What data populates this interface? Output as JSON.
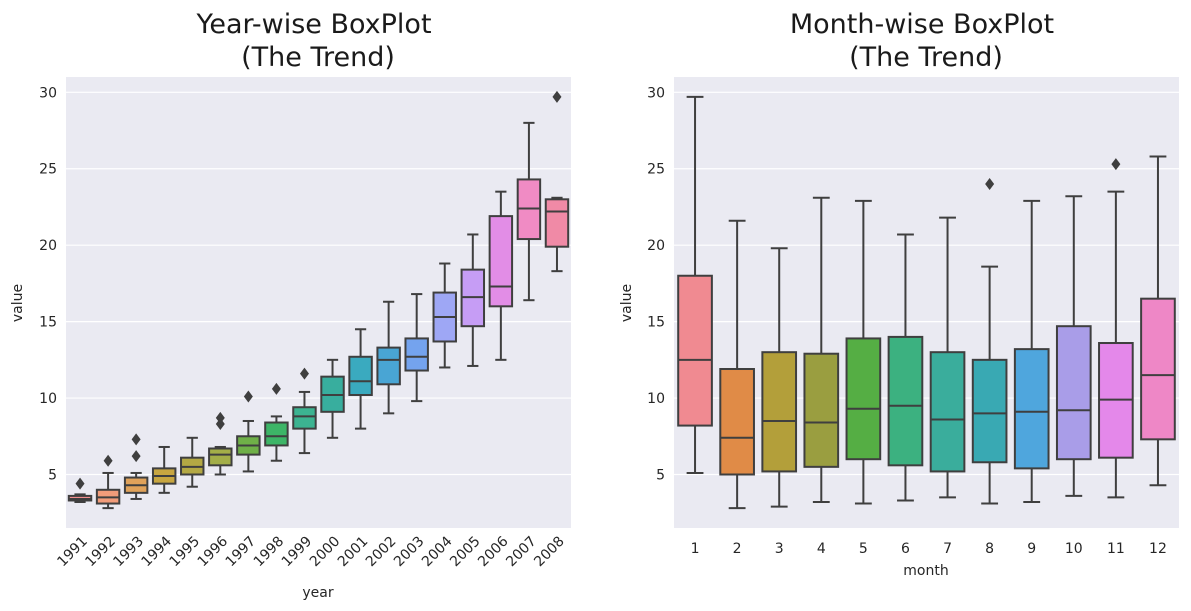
{
  "chart_data": [
    {
      "type": "box",
      "title_lines": [
        "Year-wise BoxPlot",
        "(The Trend)"
      ],
      "xlabel": "year",
      "ylabel": "value",
      "ylim": [
        1.5,
        31
      ],
      "yticks": [
        5,
        10,
        15,
        20,
        25,
        30
      ],
      "grid": true,
      "rotate_xticks": true,
      "categories": [
        "1991",
        "1992",
        "1993",
        "1994",
        "1995",
        "1996",
        "1997",
        "1998",
        "1999",
        "2000",
        "2001",
        "2002",
        "2003",
        "2004",
        "2005",
        "2006",
        "2007",
        "2008"
      ],
      "colors": [
        "#f28e8e",
        "#f19c7a",
        "#e0a25a",
        "#c8a640",
        "#b3a844",
        "#a3ae48",
        "#6fb048",
        "#3db567",
        "#3cb391",
        "#38ae9e",
        "#3aaabf",
        "#49a5d4",
        "#74a3ee",
        "#9ea7f5",
        "#c69df5",
        "#e28de6",
        "#f08bc4",
        "#f08aa6"
      ],
      "boxes": [
        {
          "whislo": 3.2,
          "q1": 3.3,
          "med": 3.4,
          "q3": 3.6,
          "whishi": 3.7,
          "fliers": [
            4.4
          ]
        },
        {
          "whislo": 2.8,
          "q1": 3.1,
          "med": 3.5,
          "q3": 4.0,
          "whishi": 5.1,
          "fliers": [
            5.9
          ]
        },
        {
          "whislo": 3.4,
          "q1": 3.8,
          "med": 4.3,
          "q3": 4.8,
          "whishi": 5.1,
          "fliers": [
            6.2,
            7.3
          ]
        },
        {
          "whislo": 3.8,
          "q1": 4.4,
          "med": 4.9,
          "q3": 5.4,
          "whishi": 6.8,
          "fliers": []
        },
        {
          "whislo": 4.2,
          "q1": 5.0,
          "med": 5.5,
          "q3": 6.1,
          "whishi": 7.4,
          "fliers": []
        },
        {
          "whislo": 5.0,
          "q1": 5.6,
          "med": 6.3,
          "q3": 6.7,
          "whishi": 6.8,
          "fliers": [
            8.3,
            8.7
          ]
        },
        {
          "whislo": 5.2,
          "q1": 6.3,
          "med": 6.9,
          "q3": 7.5,
          "whishi": 8.5,
          "fliers": [
            10.1
          ]
        },
        {
          "whislo": 5.9,
          "q1": 6.9,
          "med": 7.5,
          "q3": 8.4,
          "whishi": 8.8,
          "fliers": [
            10.6
          ]
        },
        {
          "whislo": 6.4,
          "q1": 8.0,
          "med": 8.8,
          "q3": 9.4,
          "whishi": 10.4,
          "fliers": [
            11.6
          ]
        },
        {
          "whislo": 7.4,
          "q1": 9.1,
          "med": 10.2,
          "q3": 11.4,
          "whishi": 12.5,
          "fliers": []
        },
        {
          "whislo": 8.0,
          "q1": 10.2,
          "med": 11.1,
          "q3": 12.7,
          "whishi": 14.5,
          "fliers": []
        },
        {
          "whislo": 9.0,
          "q1": 10.9,
          "med": 12.5,
          "q3": 13.3,
          "whishi": 16.3,
          "fliers": []
        },
        {
          "whislo": 9.8,
          "q1": 11.8,
          "med": 12.7,
          "q3": 13.9,
          "whishi": 16.8,
          "fliers": []
        },
        {
          "whislo": 12.0,
          "q1": 13.7,
          "med": 15.3,
          "q3": 16.9,
          "whishi": 18.8,
          "fliers": []
        },
        {
          "whislo": 12.1,
          "q1": 14.7,
          "med": 16.6,
          "q3": 18.4,
          "whishi": 20.7,
          "fliers": []
        },
        {
          "whislo": 12.5,
          "q1": 16.0,
          "med": 17.3,
          "q3": 21.9,
          "whishi": 23.5,
          "fliers": []
        },
        {
          "whislo": 16.4,
          "q1": 20.4,
          "med": 22.4,
          "q3": 24.3,
          "whishi": 28.0,
          "fliers": []
        },
        {
          "whislo": 18.3,
          "q1": 19.9,
          "med": 22.2,
          "q3": 23.0,
          "whishi": 23.1,
          "fliers": [
            29.7
          ]
        }
      ]
    },
    {
      "type": "box",
      "title_lines": [
        "Month-wise BoxPlot",
        "(The Trend)"
      ],
      "xlabel": "month",
      "ylabel": "value",
      "ylim": [
        1.5,
        31
      ],
      "yticks": [
        5,
        10,
        15,
        20,
        25,
        30
      ],
      "grid": true,
      "rotate_xticks": false,
      "categories": [
        "1",
        "2",
        "3",
        "4",
        "5",
        "6",
        "7",
        "8",
        "9",
        "10",
        "11",
        "12"
      ],
      "colors": [
        "#f08a91",
        "#e08b47",
        "#b39f3a",
        "#9a9e40",
        "#55ae44",
        "#3cb180",
        "#3aad9c",
        "#39a9b3",
        "#4fa6dd",
        "#a99de8",
        "#e488ea",
        "#ee87c6"
      ],
      "boxes": [
        {
          "whislo": 5.1,
          "q1": 8.2,
          "med": 12.5,
          "q3": 18.0,
          "whishi": 29.7,
          "fliers": []
        },
        {
          "whislo": 2.8,
          "q1": 5.0,
          "med": 7.4,
          "q3": 11.9,
          "whishi": 21.6,
          "fliers": []
        },
        {
          "whislo": 2.9,
          "q1": 5.2,
          "med": 8.5,
          "q3": 13.0,
          "whishi": 19.8,
          "fliers": []
        },
        {
          "whislo": 3.2,
          "q1": 5.5,
          "med": 8.4,
          "q3": 12.9,
          "whishi": 23.1,
          "fliers": []
        },
        {
          "whislo": 3.1,
          "q1": 6.0,
          "med": 9.3,
          "q3": 13.9,
          "whishi": 22.9,
          "fliers": []
        },
        {
          "whislo": 3.3,
          "q1": 5.6,
          "med": 9.5,
          "q3": 14.0,
          "whishi": 20.7,
          "fliers": []
        },
        {
          "whislo": 3.5,
          "q1": 5.2,
          "med": 8.6,
          "q3": 13.0,
          "whishi": 21.8,
          "fliers": []
        },
        {
          "whislo": 3.1,
          "q1": 5.8,
          "med": 9.0,
          "q3": 12.5,
          "whishi": 18.6,
          "fliers": [
            24.0
          ]
        },
        {
          "whislo": 3.2,
          "q1": 5.4,
          "med": 9.1,
          "q3": 13.2,
          "whishi": 22.9,
          "fliers": []
        },
        {
          "whislo": 3.6,
          "q1": 6.0,
          "med": 9.2,
          "q3": 14.7,
          "whishi": 23.2,
          "fliers": []
        },
        {
          "whislo": 3.5,
          "q1": 6.1,
          "med": 9.9,
          "q3": 13.6,
          "whishi": 23.5,
          "fliers": [
            25.3
          ]
        },
        {
          "whislo": 4.3,
          "q1": 7.3,
          "med": 11.5,
          "q3": 16.5,
          "whishi": 25.8,
          "fliers": []
        }
      ]
    }
  ]
}
